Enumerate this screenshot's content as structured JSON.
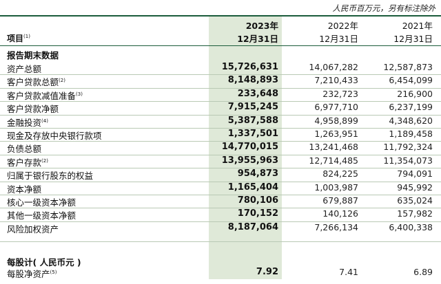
{
  "unit_note": "人民币百万元，另有标注除外",
  "header": {
    "item_label": "项目",
    "item_note": "(1)",
    "columns": [
      {
        "year": "2023年",
        "date": "12月31日"
      },
      {
        "year": "2022年",
        "date": "12月31日"
      },
      {
        "year": "2021年",
        "date": "12月31日"
      }
    ]
  },
  "section1": {
    "title": "报告期末数据",
    "rows": [
      {
        "label": "资产总额",
        "note": "",
        "v2023": "15,726,631",
        "v2022": "14,067,282",
        "v2021": "12,587,873"
      },
      {
        "label": "客户贷款总额",
        "note": "(2)",
        "v2023": "8,148,893",
        "v2022": "7,210,433",
        "v2021": "6,454,099"
      },
      {
        "label": "客户贷款减值准备",
        "note": "(3)",
        "v2023": "233,648",
        "v2022": "232,723",
        "v2021": "216,900"
      },
      {
        "label": "客户贷款净额",
        "note": "",
        "v2023": "7,915,245",
        "v2022": "6,977,710",
        "v2021": "6,237,199"
      },
      {
        "label": "金融投资",
        "note": "(4)",
        "v2023": "5,387,588",
        "v2022": "4,958,899",
        "v2021": "4,348,620"
      },
      {
        "label": "现金及存放中央银行款项",
        "note": "",
        "v2023": "1,337,501",
        "v2022": "1,263,951",
        "v2021": "1,189,458"
      },
      {
        "label": "负债总额",
        "note": "",
        "v2023": "14,770,015",
        "v2022": "13,241,468",
        "v2021": "11,792,324"
      },
      {
        "label": "客户存款",
        "note": "(2)",
        "v2023": "13,955,963",
        "v2022": "12,714,485",
        "v2021": "11,354,073"
      },
      {
        "label": "归属于银行股东的权益",
        "note": "",
        "v2023": "954,873",
        "v2022": "824,225",
        "v2021": "794,091"
      },
      {
        "label": "资本净额",
        "note": "",
        "v2023": "1,165,404",
        "v2022": "1,003,987",
        "v2021": "945,992"
      },
      {
        "label": "核心一级资本净额",
        "note": "",
        "v2023": "780,106",
        "v2022": "679,887",
        "v2021": "635,024"
      },
      {
        "label": "其他一级资本净额",
        "note": "",
        "v2023": "170,152",
        "v2022": "140,126",
        "v2021": "157,982"
      },
      {
        "label": "风险加权资产",
        "note": "",
        "v2023": "8,187,064",
        "v2022": "7,266,134",
        "v2021": "6,400,338"
      }
    ]
  },
  "section2": {
    "title": "每股计( 人民币元 )",
    "rows": [
      {
        "label": "每股净资产",
        "note": "(5)",
        "v2023": "7.92",
        "v2022": "7.41",
        "v2021": "6.89"
      }
    ]
  }
}
